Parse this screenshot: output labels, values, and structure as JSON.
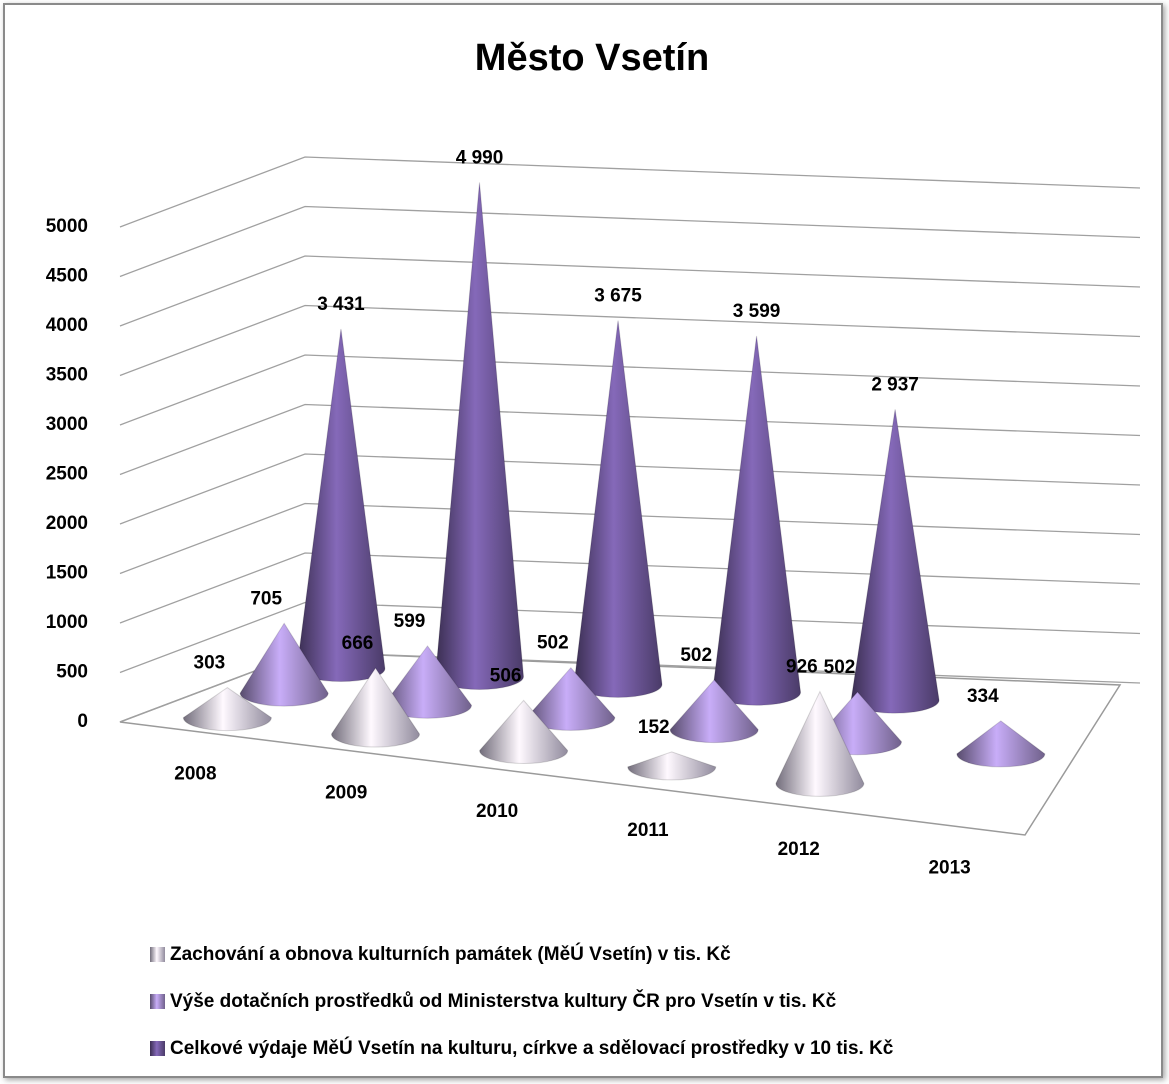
{
  "chart_data": {
    "type": "cone3d",
    "title": "Město Vsetín",
    "categories": [
      "2008",
      "2009",
      "2010",
      "2011",
      "2012",
      "2013"
    ],
    "series": [
      {
        "name": "Zachování a obnova kulturních památek (MěÚ Vsetín) v tis. Kč",
        "color": "#cfc7e0",
        "values": [
          303,
          666,
          506,
          152,
          926,
          null
        ]
      },
      {
        "name": "Výše dotačních prostředků od Ministerstva kultury ČR pro Vsetín v tis. Kč",
        "color": "#a08ac6",
        "values": [
          705,
          599,
          502,
          502,
          502,
          334
        ]
      },
      {
        "name": "Celkové výdaje MěÚ Vsetín na kulturu, církve a sdělovací prostředky v 10 tis. Kč",
        "color": "#6a5494",
        "values": [
          3431,
          4990,
          3675,
          3599,
          2937,
          null
        ],
        "value_labels": [
          "3 431",
          "4 990",
          "3 675",
          "3 599",
          "2 937",
          null
        ]
      }
    ],
    "ylim": [
      0,
      5000
    ],
    "yticks": [
      0,
      500,
      1000,
      1500,
      2000,
      2500,
      3000,
      3500,
      4000,
      4500,
      5000
    ],
    "grid": true,
    "legend": "bottom"
  }
}
